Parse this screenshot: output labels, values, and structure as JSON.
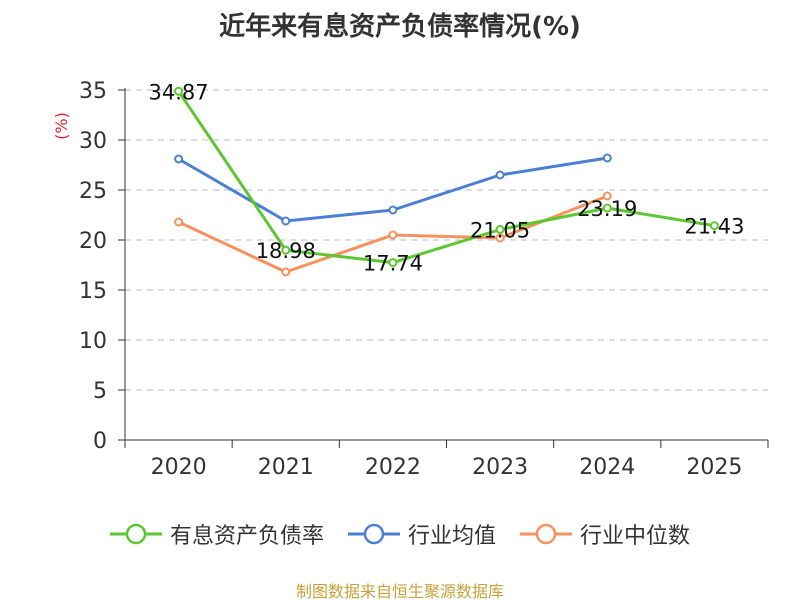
{
  "title": "近年来有息资产负债率情况(%)",
  "source_note": "制图数据来自恒生聚源数据库",
  "chart_data": {
    "type": "line",
    "title": "近年来有息资产负债率情况(%)",
    "xlabel": "",
    "ylabel": "(%)",
    "categories": [
      "2020",
      "2021",
      "2022",
      "2023",
      "2024",
      "2025"
    ],
    "y_ticks": [
      "0",
      "5",
      "10",
      "15",
      "20",
      "25",
      "30",
      "35"
    ],
    "ylim": [
      0,
      35
    ],
    "grid": "horizontal dashed",
    "legend_position": "bottom",
    "series": [
      {
        "name": "有息资产负债率",
        "color": "#5cc72f",
        "values": [
          34.87,
          18.98,
          17.74,
          21.05,
          23.19,
          21.43
        ],
        "labels": [
          "34.87",
          "18.98",
          "17.74",
          "21.05",
          "23.19",
          "21.43"
        ]
      },
      {
        "name": "行业均值",
        "color": "#4a7fd6",
        "values": [
          28.1,
          21.9,
          23.0,
          26.5,
          28.2,
          null
        ]
      },
      {
        "name": "行业中位数",
        "color": "#f5925e",
        "values": [
          21.8,
          16.8,
          20.5,
          20.2,
          24.4,
          null
        ]
      }
    ]
  }
}
